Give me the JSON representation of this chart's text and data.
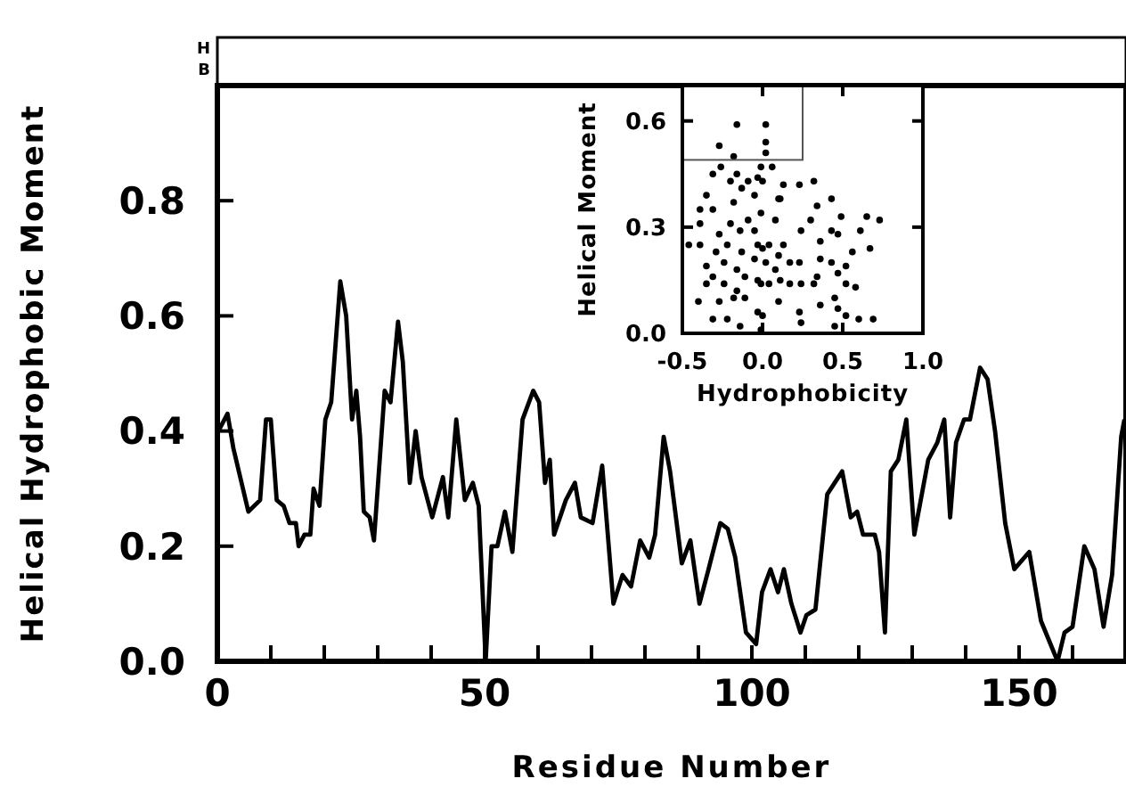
{
  "chart_data": [
    {
      "type": "line",
      "xlabel": "Residue Number",
      "ylabel": "Helical Hydrophobic Moment",
      "color": "#000000",
      "line_style": "solid",
      "marker": "none",
      "annotations": [
        "H",
        "B"
      ],
      "xlim": [
        0,
        170
      ],
      "ylim": [
        0,
        1.0
      ],
      "xticks": [
        0,
        {
          "value": 10,
          "label": null
        },
        {
          "value": 20,
          "label": null
        },
        {
          "value": 30,
          "label": null
        },
        {
          "value": 40,
          "label": null
        },
        50,
        {
          "value": 60,
          "label": null
        },
        {
          "value": 70,
          "label": null
        },
        {
          "value": 80,
          "label": null
        },
        {
          "value": 90,
          "label": null
        },
        100,
        {
          "value": 110,
          "label": null
        },
        {
          "value": 120,
          "label": null
        },
        {
          "value": 130,
          "label": null
        },
        {
          "value": 140,
          "label": null
        },
        150,
        {
          "value": 160,
          "label": null
        }
      ],
      "yticks": [
        {
          "value": 0,
          "label": "0.0"
        },
        {
          "value": 0.2,
          "label": "0.2"
        },
        {
          "value": 0.4,
          "label": "0.4"
        },
        {
          "value": 0.6,
          "label": "0.6"
        },
        {
          "value": 0.8,
          "label": "0.8"
        }
      ],
      "x": [
        0.2,
        1.9,
        3.0,
        5.8,
        8.0,
        9.1,
        10.0,
        11.1,
        12.4,
        13.5,
        14.7,
        15.2,
        16.3,
        17.4,
        18.0,
        19.1,
        20.2,
        21.3,
        23.0,
        24.1,
        25.2,
        26.0,
        26.7,
        27.4,
        28.5,
        29.3,
        31.3,
        32.4,
        33.8,
        34.7,
        36.0,
        37.1,
        38.2,
        40.2,
        42.2,
        43.2,
        44.7,
        46.3,
        47.8,
        48.9,
        50.2,
        51.3,
        52.4,
        53.8,
        55.2,
        57.1,
        59.1,
        60.2,
        61.3,
        62.2,
        63.0,
        65.2,
        66.9,
        68.0,
        70.2,
        72.0,
        74.1,
        75.8,
        77.4,
        79.1,
        80.8,
        81.9,
        83.5,
        84.7,
        86.9,
        88.5,
        90.2,
        91.9,
        94.1,
        95.5,
        96.9,
        98.9,
        100.8,
        101.9,
        103.5,
        104.9,
        106.0,
        107.4,
        109.1,
        110.2,
        111.9,
        114.1,
        116.9,
        118.5,
        119.7,
        120.8,
        123.0,
        123.8,
        124.9,
        126.0,
        127.4,
        128.9,
        130.4,
        133.0,
        134.7,
        136.0,
        137.1,
        138.2,
        139.7,
        140.8,
        142.7,
        144.1,
        145.5,
        147.4,
        149.1,
        151.9,
        154.1,
        157.2,
        158.5,
        160.0,
        162.2,
        164.1,
        165.8,
        167.4,
        169.1,
        169.7
      ],
      "values": [
        0.4,
        0.43,
        0.37,
        0.26,
        0.28,
        0.42,
        0.42,
        0.28,
        0.27,
        0.24,
        0.24,
        0.2,
        0.22,
        0.22,
        0.3,
        0.27,
        0.42,
        0.45,
        0.66,
        0.6,
        0.42,
        0.47,
        0.39,
        0.26,
        0.25,
        0.21,
        0.47,
        0.45,
        0.59,
        0.52,
        0.31,
        0.4,
        0.32,
        0.25,
        0.32,
        0.25,
        0.42,
        0.28,
        0.31,
        0.27,
        0.0,
        0.2,
        0.2,
        0.26,
        0.19,
        0.42,
        0.47,
        0.45,
        0.31,
        0.35,
        0.22,
        0.28,
        0.31,
        0.25,
        0.24,
        0.34,
        0.1,
        0.15,
        0.13,
        0.21,
        0.18,
        0.22,
        0.39,
        0.33,
        0.17,
        0.21,
        0.1,
        0.16,
        0.24,
        0.23,
        0.18,
        0.05,
        0.03,
        0.12,
        0.16,
        0.12,
        0.16,
        0.1,
        0.05,
        0.08,
        0.09,
        0.29,
        0.33,
        0.25,
        0.26,
        0.22,
        0.22,
        0.19,
        0.05,
        0.33,
        0.35,
        0.42,
        0.22,
        0.35,
        0.38,
        0.42,
        0.25,
        0.38,
        0.42,
        0.42,
        0.51,
        0.49,
        0.4,
        0.24,
        0.16,
        0.19,
        0.07,
        0.0,
        0.05,
        0.06,
        0.2,
        0.16,
        0.06,
        0.15,
        0.39,
        0.42
      ]
    },
    {
      "type": "scatter",
      "xlabel": "Hydrophobicity",
      "ylabel": "Helical Moment",
      "color": "#000000",
      "marker": "circle",
      "xlim": [
        -0.5,
        1.0
      ],
      "ylim": [
        0,
        0.7
      ],
      "xticks": [
        {
          "value": -0.5,
          "label": "-0.5"
        },
        {
          "value": 0,
          "label": "0.0"
        },
        {
          "value": 0.5,
          "label": "0.5"
        },
        {
          "value": 1.0,
          "label": "1.0"
        }
      ],
      "yticks": [
        {
          "value": 0,
          "label": "0.0"
        },
        {
          "value": 0.3,
          "label": "0.3"
        },
        {
          "value": 0.6,
          "label": "0.6"
        }
      ],
      "x": [
        -0.16,
        0.02,
        -0.27,
        0.02,
        0.02,
        -0.18,
        -0.26,
        -0.01,
        0.06,
        -0.16,
        -0.31,
        -0.03,
        -0.2,
        -0.09,
        0.0,
        0.13,
        0.23,
        0.32,
        -0.35,
        -0.13,
        0.1,
        -0.05,
        -0.39,
        -0.18,
        0.11,
        0.34,
        0.43,
        -0.01,
        -0.31,
        -0.09,
        0.3,
        0.49,
        0.65,
        0.73,
        -0.39,
        -0.2,
        0.08,
        -0.27,
        -0.14,
        -0.05,
        0.24,
        0.43,
        0.61,
        -0.46,
        -0.39,
        -0.22,
        -0.03,
        0.04,
        0.13,
        -0.29,
        -0.13,
        0.0,
        0.1,
        0.36,
        0.47,
        0.67,
        -0.24,
        -0.05,
        0.17,
        0.36,
        0.43,
        0.56,
        -0.35,
        -0.16,
        0.02,
        0.08,
        0.23,
        0.52,
        -0.31,
        -0.11,
        -0.03,
        0.11,
        0.34,
        0.47,
        -0.24,
        -0.16,
        -0.01,
        0.04,
        0.17,
        0.24,
        0.52,
        -0.35,
        -0.4,
        -0.18,
        -0.11,
        0.1,
        0.32,
        0.36,
        0.45,
        0.58,
        -0.27,
        -0.03,
        0.23,
        0.47,
        -0.31,
        -0.22,
        -0.14,
        0.0,
        0.24,
        0.52,
        0.6,
        0.69,
        0.45,
        -0.01
      ],
      "values": [
        0.59,
        0.59,
        0.53,
        0.54,
        0.51,
        0.5,
        0.47,
        0.47,
        0.47,
        0.45,
        0.45,
        0.44,
        0.43,
        0.43,
        0.43,
        0.42,
        0.42,
        0.43,
        0.39,
        0.41,
        0.38,
        0.39,
        0.35,
        0.37,
        0.38,
        0.36,
        0.38,
        0.34,
        0.35,
        0.32,
        0.32,
        0.33,
        0.33,
        0.32,
        0.31,
        0.31,
        0.32,
        0.28,
        0.29,
        0.29,
        0.29,
        0.29,
        0.29,
        0.25,
        0.25,
        0.25,
        0.25,
        0.25,
        0.25,
        0.23,
        0.23,
        0.24,
        0.22,
        0.26,
        0.28,
        0.24,
        0.2,
        0.21,
        0.2,
        0.21,
        0.2,
        0.23,
        0.19,
        0.18,
        0.2,
        0.18,
        0.2,
        0.19,
        0.16,
        0.16,
        0.15,
        0.15,
        0.16,
        0.17,
        0.14,
        0.12,
        0.14,
        0.14,
        0.14,
        0.14,
        0.14,
        0.14,
        0.09,
        0.1,
        0.1,
        0.09,
        0.14,
        0.08,
        0.1,
        0.13,
        0.09,
        0.06,
        0.06,
        0.07,
        0.04,
        0.04,
        0.02,
        0.05,
        0.03,
        0.05,
        0.04,
        0.04,
        0.02,
        0.01
      ]
    }
  ]
}
